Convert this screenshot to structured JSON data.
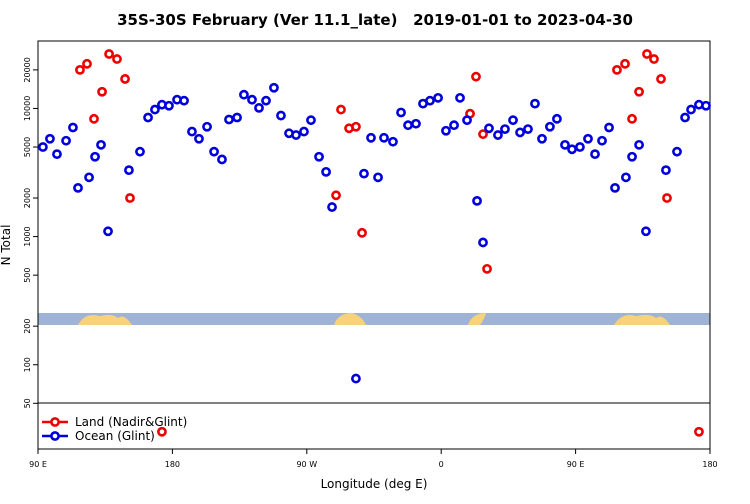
{
  "chart_data": {
    "type": "scatter",
    "title": "35S-30S February (Ver 11.1_late)   2019-01-01 to 2023-04-30",
    "xlabel": "Longitude (deg E)",
    "ylabel": "N Total",
    "log_scale": true,
    "legend": "bottom-left",
    "xlim": [
      90,
      540
    ],
    "xticks": [
      {
        "value": 90,
        "label": "90 E"
      },
      {
        "value": 180,
        "label": "180"
      },
      {
        "value": 270,
        "label": "90 W"
      },
      {
        "value": 360,
        "label": "0"
      },
      {
        "value": 450,
        "label": "90 E"
      },
      {
        "value": 540,
        "label": "180"
      }
    ],
    "ylim": [
      22,
      33600
    ],
    "yticks": [
      50,
      100,
      200,
      500,
      1000,
      2000,
      5000,
      10000,
      20000
    ],
    "series": [
      {
        "name": "Land (Nadir&Glint)",
        "color": "#ee0000",
        "x": [
          118.1,
          122.8,
          127.5,
          132.9,
          137.6,
          142.9,
          148.3,
          151.6,
          289.6,
          292.9,
          298.3,
          302.9,
          307.0,
          379.3,
          383.3,
          388.0,
          390.7,
          477.7,
          483.1,
          487.8,
          492.5,
          497.8,
          502.5,
          507.2,
          511.2,
          173.0,
          532.6
        ],
        "values": [
          20000,
          22300,
          8300,
          13500,
          26600,
          24300,
          17000,
          2000,
          2100,
          9800,
          7000,
          7200,
          1070,
          9100,
          17700,
          6300,
          560,
          20000,
          22300,
          8300,
          13500,
          26600,
          24300,
          17000,
          2000,
          30,
          30
        ]
      },
      {
        "name": "Ocean (Glint)",
        "color": "#0000dd",
        "x": [
          93.3,
          98.0,
          102.7,
          108.8,
          113.4,
          116.8,
          124.2,
          128.2,
          132.2,
          136.9,
          150.9,
          158.3,
          163.7,
          168.3,
          173.0,
          177.7,
          183.1,
          187.8,
          193.1,
          197.8,
          203.2,
          207.9,
          213.2,
          217.9,
          223.3,
          227.9,
          233.3,
          238.0,
          242.7,
          248.0,
          252.7,
          258.1,
          262.8,
          268.1,
          272.8,
          278.2,
          282.9,
          286.9,
          308.3,
          317.7,
          313.0,
          321.7,
          327.7,
          333.1,
          337.8,
          343.1,
          347.8,
          352.5,
          357.9,
          363.2,
          368.6,
          372.6,
          377.3,
          384.0,
          388.0,
          392.0,
          398.0,
          402.7,
          408.1,
          412.8,
          418.1,
          422.8,
          427.5,
          432.8,
          437.5,
          442.9,
          447.6,
          452.9,
          458.3,
          463.0,
          467.7,
          472.4,
          476.4,
          483.7,
          487.8,
          492.5,
          497.1,
          510.5,
          517.9,
          523.3,
          527.3,
          532.6,
          537.3,
          302.9
        ],
        "values": [
          5000,
          5800,
          4400,
          5600,
          7100,
          2400,
          2900,
          4200,
          5200,
          1100,
          3300,
          4600,
          8500,
          9800,
          10700,
          10500,
          11700,
          11500,
          6600,
          5800,
          7200,
          4600,
          4000,
          8200,
          8500,
          12800,
          11700,
          10100,
          11500,
          14500,
          8800,
          6400,
          6200,
          6600,
          8100,
          4200,
          3200,
          1700,
          3100,
          2900,
          5900,
          5900,
          5500,
          9300,
          7400,
          7600,
          10900,
          11500,
          12100,
          6700,
          7400,
          12100,
          8100,
          1900,
          900,
          7000,
          6200,
          6900,
          8100,
          6500,
          6900,
          10900,
          5800,
          7200,
          8300,
          5200,
          4800,
          5000,
          5800,
          4400,
          5600,
          7100,
          2400,
          2900,
          4200,
          5200,
          1100,
          3300,
          4600,
          8500,
          9800,
          10700,
          10500,
          78
        ]
      }
    ]
  }
}
